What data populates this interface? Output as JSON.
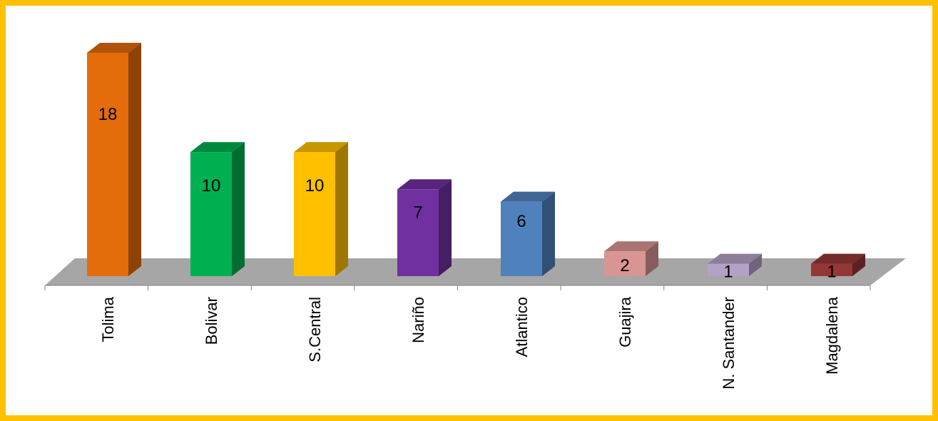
{
  "colors": {
    "frame_border": "#FFC000",
    "floor": "#A6A6A6",
    "bar_colors": [
      "#E46C0A",
      "#00B050",
      "#FFC000",
      "#7030A0",
      "#4F81BD",
      "#D99594",
      "#B3A2C7",
      "#953735"
    ]
  },
  "chart_data": {
    "type": "bar",
    "style": "3d-column",
    "categories": [
      "Tolima",
      "Bolivar",
      "S.Central",
      "Nariño",
      "Atlantico",
      "Guajira",
      "N. Santander",
      "Magdalena"
    ],
    "series": [
      {
        "values": [
          18,
          10,
          10,
          7,
          6,
          2,
          1,
          1
        ]
      }
    ],
    "data_labels": [
      "18",
      "10",
      "10",
      "7",
      "6",
      "2",
      "1",
      "1"
    ],
    "title": "",
    "xlabel": "",
    "ylabel": "",
    "ylim": [
      0,
      18
    ],
    "grid": false,
    "legend": "none"
  }
}
